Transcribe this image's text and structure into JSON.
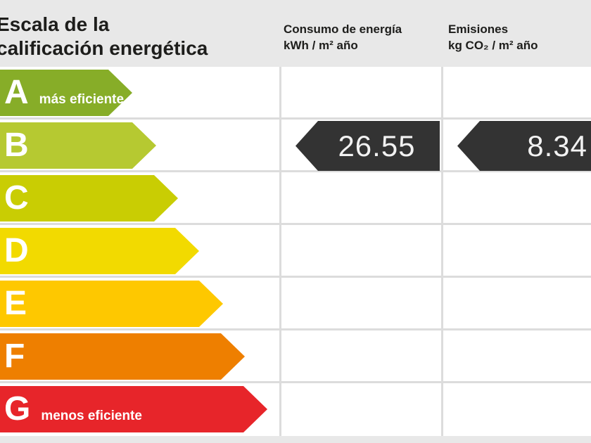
{
  "certificate": {
    "title_line1": "Escala de la",
    "title_line2": "calificación energética",
    "columns": [
      {
        "name": "Consumo de energía",
        "unit": "kWh / m² año"
      },
      {
        "name": "Emisiones",
        "unit": "kg CO₂ / m² año"
      }
    ],
    "scale": [
      {
        "grade": "A",
        "note": "más eficiente",
        "color": "#87ad28",
        "arrow_length": 188
      },
      {
        "grade": "B",
        "note": "",
        "color": "#b6c931",
        "arrow_length": 222
      },
      {
        "grade": "C",
        "note": "",
        "color": "#c9cd03",
        "arrow_length": 253
      },
      {
        "grade": "D",
        "note": "",
        "color": "#f2da00",
        "arrow_length": 283
      },
      {
        "grade": "E",
        "note": "",
        "color": "#fec800",
        "arrow_length": 317
      },
      {
        "grade": "F",
        "note": "",
        "color": "#ee7f00",
        "arrow_length": 348
      },
      {
        "grade": "G",
        "note": "menos eficiente",
        "color": "#e7252a",
        "arrow_length": 380
      }
    ],
    "rating": {
      "grade": "B",
      "consumption_value": "26.55",
      "emissions_value": "8.34",
      "arrow_color": "#333333"
    }
  },
  "chart_data": {
    "type": "bar",
    "title": "Escala de la calificación energética",
    "categories": [
      "A",
      "B",
      "C",
      "D",
      "E",
      "F",
      "G"
    ],
    "series": [
      {
        "name": "Consumo de energía kWh/m² año",
        "values": [
          null,
          26.55,
          null,
          null,
          null,
          null,
          null
        ]
      },
      {
        "name": "Emisiones kg CO₂/m² año",
        "values": [
          null,
          8.34,
          null,
          null,
          null,
          null,
          null
        ]
      }
    ],
    "annotations": [
      "A = más eficiente",
      "G = menos eficiente",
      "rated grade: B"
    ],
    "legend_position": "top",
    "grid": true
  }
}
